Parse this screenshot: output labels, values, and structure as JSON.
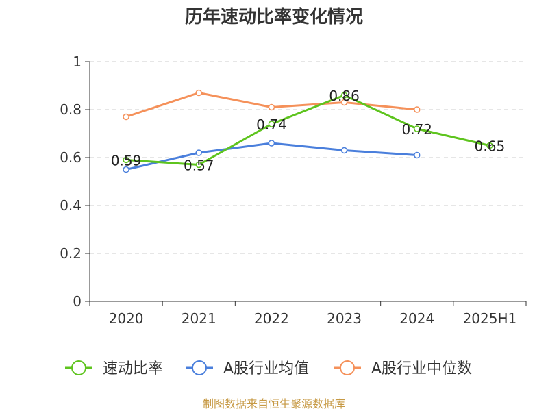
{
  "chart_data": {
    "type": "line",
    "title": "历年速动比率变化情况",
    "categories": [
      "2020",
      "2021",
      "2022",
      "2023",
      "2024",
      "2025H1"
    ],
    "ylim": [
      0,
      1
    ],
    "yticks": [
      "0",
      "0.2",
      "0.4",
      "0.6",
      "0.8",
      "1"
    ],
    "grid": true,
    "legend_position": "bottom",
    "series": [
      {
        "name": "速动比率",
        "color": "#5ec41e",
        "values": [
          0.59,
          0.57,
          0.74,
          0.86,
          0.72,
          0.65
        ],
        "labels": [
          "0.59",
          "0.57",
          "0.74",
          "0.86",
          "0.72",
          "0.65"
        ]
      },
      {
        "name": "A股行业均值",
        "color": "#4a7fdc",
        "values": [
          0.55,
          0.62,
          0.66,
          0.63,
          0.61,
          null
        ]
      },
      {
        "name": "A股行业中位数",
        "color": "#f5915a",
        "values": [
          0.77,
          0.87,
          0.81,
          0.83,
          0.8,
          null
        ]
      }
    ]
  },
  "footer": {
    "source": "制图数据来自恒生聚源数据库"
  }
}
